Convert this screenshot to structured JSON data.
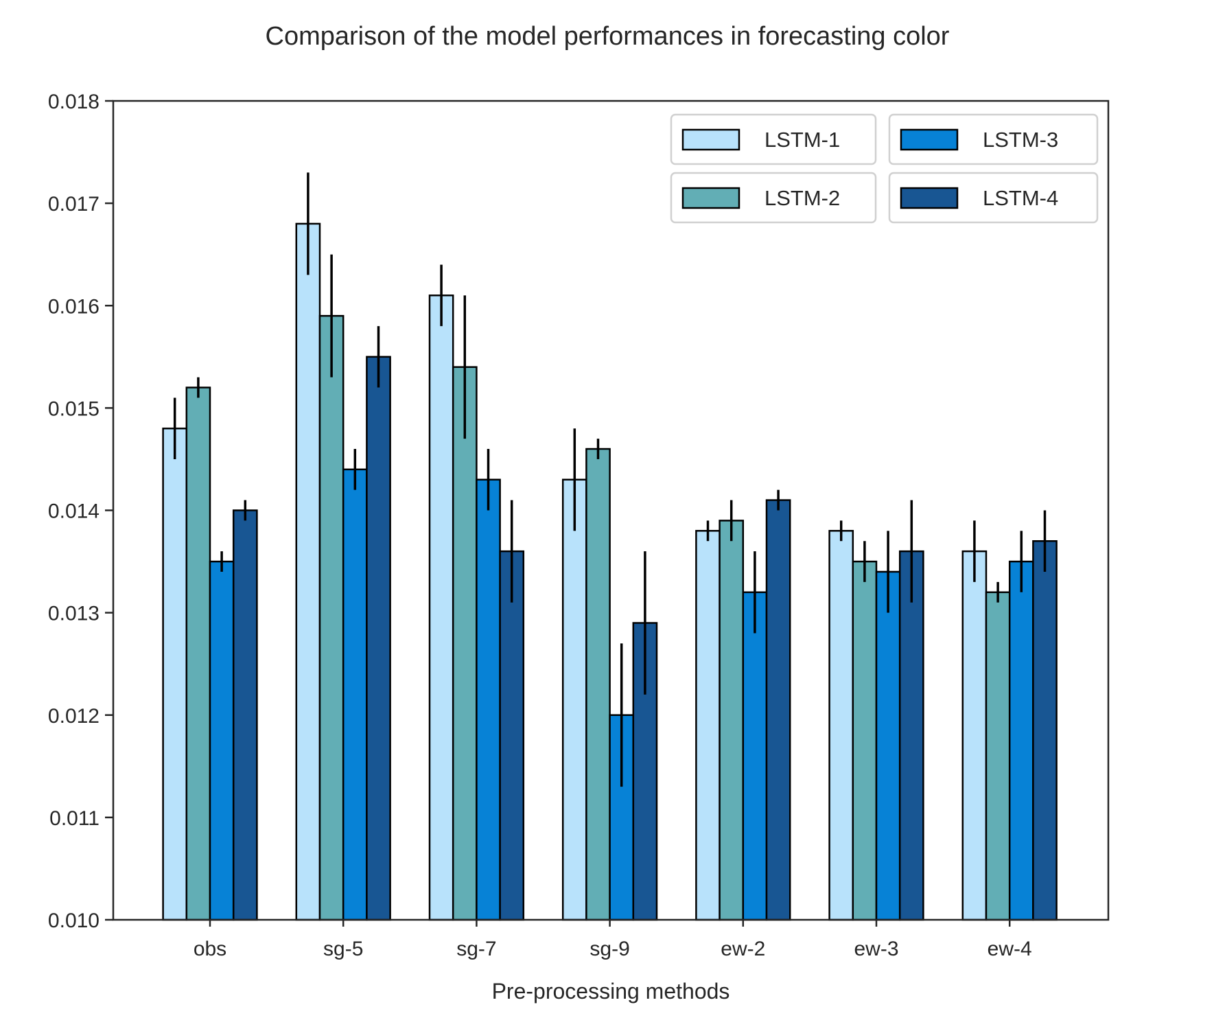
{
  "chart_data": {
    "type": "bar",
    "title": "Comparison of the model performances in forecasting color",
    "xlabel": "Pre-processing methods",
    "ylabel": "",
    "ylim": [
      0.01,
      0.018
    ],
    "yticks": [
      "0.010",
      "0.011",
      "0.012",
      "0.013",
      "0.014",
      "0.015",
      "0.016",
      "0.017",
      "0.018"
    ],
    "categories": [
      "obs",
      "sg-5",
      "sg-7",
      "sg-9",
      "ew-2",
      "ew-3",
      "ew-4"
    ],
    "legend_position": "top-right",
    "grid": false,
    "series": [
      {
        "name": "LSTM-1",
        "color": "#b8e2fb",
        "values": [
          0.0148,
          0.0168,
          0.0161,
          0.0143,
          0.0138,
          0.0138,
          0.0136
        ],
        "err": [
          0.0003,
          0.0005,
          0.0003,
          0.0005,
          0.0001,
          0.0001,
          0.0003
        ]
      },
      {
        "name": "LSTM-2",
        "color": "#62aeb5",
        "values": [
          0.0152,
          0.0159,
          0.0154,
          0.0146,
          0.0139,
          0.0135,
          0.0132
        ],
        "err": [
          0.0001,
          0.0006,
          0.0007,
          0.0001,
          0.0002,
          0.0002,
          0.0001
        ]
      },
      {
        "name": "LSTM-3",
        "color": "#0782d6",
        "values": [
          0.0135,
          0.0144,
          0.0143,
          0.012,
          0.0132,
          0.0134,
          0.0135
        ],
        "err": [
          0.0001,
          0.0002,
          0.0003,
          0.0007,
          0.0004,
          0.0004,
          0.0003
        ]
      },
      {
        "name": "LSTM-4",
        "color": "#185693",
        "values": [
          0.014,
          0.0155,
          0.0136,
          0.0129,
          0.0141,
          0.0136,
          0.0137
        ],
        "err": [
          0.0001,
          0.0003,
          0.0005,
          0.0007,
          0.0001,
          0.0005,
          0.0003
        ]
      }
    ]
  }
}
